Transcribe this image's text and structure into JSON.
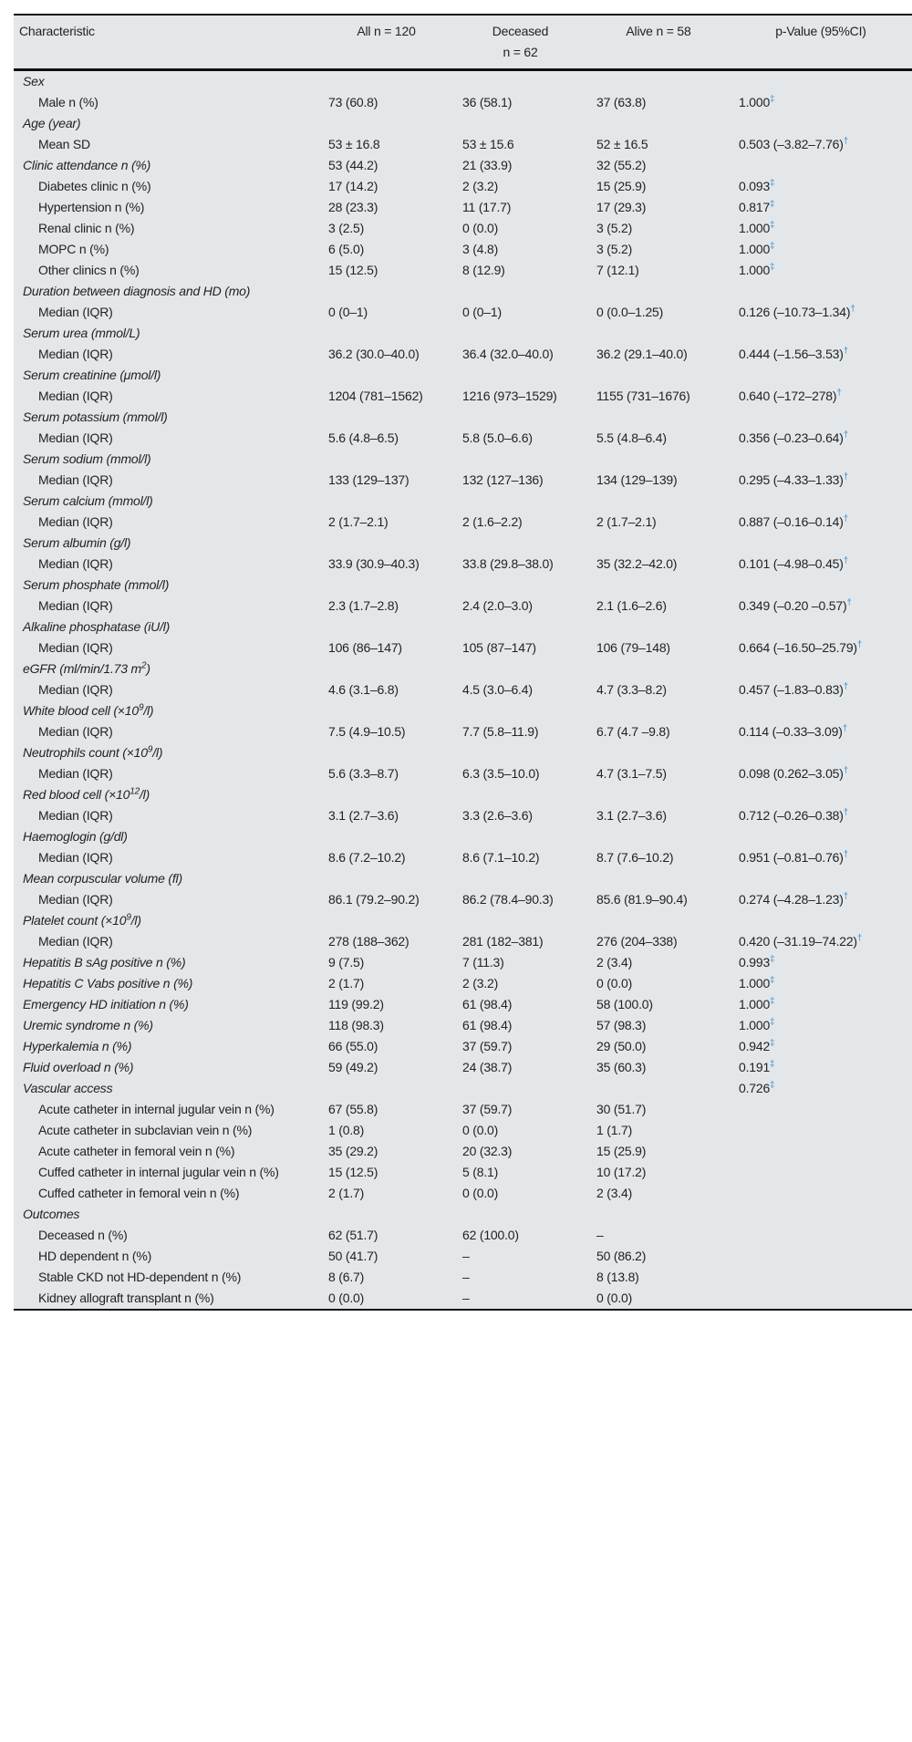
{
  "header": {
    "characteristic": "Characteristic",
    "all": "All n = 120",
    "deceased_line1": "Deceased",
    "deceased_line2": "n = 62",
    "alive": "Alive n = 58",
    "pvalue": "p-Value (95%CI)"
  },
  "colors": {
    "background": "#e3e7ea",
    "footnote_mark": "#3a8fd0"
  },
  "rows": [
    {
      "type": "sec",
      "label": "Sex"
    },
    {
      "type": "sub",
      "label": "Male n (%)",
      "all": "73 (60.8)",
      "dec": "36 (58.1)",
      "alive": "37 (63.8)",
      "p": "1.000",
      "mark": "‡"
    },
    {
      "type": "sec",
      "label": "Age (year)"
    },
    {
      "type": "sub",
      "label": "Mean SD",
      "all": "53 ± 16.8",
      "dec": "53 ± 15.6",
      "alive": "52 ± 16.5",
      "p": "0.503 (–3.82–7.76)",
      "mark": "†"
    },
    {
      "type": "sec",
      "label": "Clinic attendance n (%)",
      "all": "53 (44.2)",
      "dec": "21 (33.9)",
      "alive": "32 (55.2)"
    },
    {
      "type": "sub",
      "label": "Diabetes clinic n (%)",
      "all": "17 (14.2)",
      "dec": "2 (3.2)",
      "alive": "15 (25.9)",
      "p": "0.093",
      "mark": "‡"
    },
    {
      "type": "sub",
      "label": "Hypertension n (%)",
      "all": "28 (23.3)",
      "dec": "11 (17.7)",
      "alive": "17 (29.3)",
      "p": "0.817",
      "mark": "‡"
    },
    {
      "type": "sub",
      "label": "Renal clinic n (%)",
      "all": "3 (2.5)",
      "dec": "0 (0.0)",
      "alive": "3 (5.2)",
      "p": "1.000",
      "mark": "‡"
    },
    {
      "type": "sub",
      "label": "MOPC n (%)",
      "all": "6 (5.0)",
      "dec": "3 (4.8)",
      "alive": "3 (5.2)",
      "p": "1.000",
      "mark": "‡"
    },
    {
      "type": "sub",
      "label": "Other clinics n (%)",
      "all": "15 (12.5)",
      "dec": "8 (12.9)",
      "alive": "7 (12.1)",
      "p": "1.000",
      "mark": "‡"
    },
    {
      "type": "sec",
      "label": "Duration between diagnosis and HD (mo)"
    },
    {
      "type": "sub",
      "label": "Median (IQR)",
      "all": "0 (0–1)",
      "dec": "0 (0–1)",
      "alive": "0 (0.0–1.25)",
      "p": "0.126 (–10.73–1.34)",
      "mark": "†"
    },
    {
      "type": "sec",
      "label": "Serum urea (mmol/L)"
    },
    {
      "type": "sub",
      "label": "Median (IQR)",
      "all": "36.2 (30.0–40.0)",
      "dec": "36.4 (32.0–40.0)",
      "alive": "36.2 (29.1–40.0)",
      "p": "0.444 (–1.56–3.53)",
      "mark": "†"
    },
    {
      "type": "sec",
      "label": "Serum creatinine (μmol/l)"
    },
    {
      "type": "sub",
      "label": "Median (IQR)",
      "all": "1204 (781–1562)",
      "dec": "1216 (973–1529)",
      "alive": "1155 (731–1676)",
      "p": "0.640 (–172–278)",
      "mark": "†"
    },
    {
      "type": "sec",
      "label": "Serum potassium (mmol/l)"
    },
    {
      "type": "sub",
      "label": "Median (IQR)",
      "all": "5.6 (4.8–6.5)",
      "dec": "5.8 (5.0–6.6)",
      "alive": "5.5 (4.8–6.4)",
      "p": "0.356 (–0.23–0.64)",
      "mark": "†"
    },
    {
      "type": "sec",
      "label": "Serum sodium (mmol/l)"
    },
    {
      "type": "sub",
      "label": "Median (IQR)",
      "all": "133 (129–137)",
      "dec": "132 (127–136)",
      "alive": "134 (129–139)",
      "p": "0.295 (–4.33–1.33)",
      "mark": "†"
    },
    {
      "type": "sec",
      "label": "Serum calcium (mmol/l)"
    },
    {
      "type": "sub",
      "label": "Median (IQR)",
      "all": "2 (1.7–2.1)",
      "dec": "2 (1.6–2.2)",
      "alive": "2 (1.7–2.1)",
      "p": "0.887 (–0.16–0.14)",
      "mark": "†"
    },
    {
      "type": "sec",
      "label": "Serum albumin (g/l)"
    },
    {
      "type": "sub",
      "label": "Median (IQR)",
      "all": "33.9 (30.9–40.3)",
      "dec": "33.8 (29.8–38.0)",
      "alive": "35 (32.2–42.0)",
      "p": "0.101 (–4.98–0.45)",
      "mark": "†"
    },
    {
      "type": "sec",
      "label": "Serum phosphate (mmol/l)"
    },
    {
      "type": "sub",
      "label": "Median (IQR)",
      "all": "2.3 (1.7–2.8)",
      "dec": "2.4 (2.0–3.0)",
      "alive": "2.1 (1.6–2.6)",
      "p": "0.349 (–0.20 –0.57)",
      "mark": "†"
    },
    {
      "type": "sec",
      "label": "Alkaline phosphatase (iU/l)"
    },
    {
      "type": "sub",
      "label": "Median (IQR)",
      "all": "106 (86–147)",
      "dec": "105 (87–147)",
      "alive": "106 (79–148)",
      "p": "0.664 (–16.50–25.79)",
      "mark": "†"
    },
    {
      "type": "sec",
      "label": "eGFR (ml/min/1.73 m",
      "sup": "2",
      "label_post": ")"
    },
    {
      "type": "sub",
      "label": "Median (IQR)",
      "all": "4.6 (3.1–6.8)",
      "dec": "4.5 (3.0–6.4)",
      "alive": "4.7 (3.3–8.2)",
      "p": "0.457 (–1.83–0.83)",
      "mark": "†"
    },
    {
      "type": "sec",
      "label": "White blood cell (×10",
      "sup": "9",
      "label_post": "/l)"
    },
    {
      "type": "sub",
      "label": "Median (IQR)",
      "all": "7.5 (4.9–10.5)",
      "dec": "7.7 (5.8–11.9)",
      "alive": "6.7 (4.7 –9.8)",
      "p": "0.114 (–0.33–3.09)",
      "mark": "†"
    },
    {
      "type": "sec",
      "label": "Neutrophils count (×10",
      "sup": "9",
      "label_post": "/l)"
    },
    {
      "type": "sub",
      "label": "Median (IQR)",
      "all": "5.6 (3.3–8.7)",
      "dec": "6.3 (3.5–10.0)",
      "alive": "4.7 (3.1–7.5)",
      "p": "0.098 (0.262–3.05)",
      "mark": "†"
    },
    {
      "type": "sec",
      "label": "Red blood cell (×10",
      "sup": "12",
      "label_post": "/l)"
    },
    {
      "type": "sub",
      "label": "Median (IQR)",
      "all": "3.1 (2.7–3.6)",
      "dec": "3.3 (2.6–3.6)",
      "alive": "3.1 (2.7–3.6)",
      "p": "0.712 (–0.26–0.38)",
      "mark": "†"
    },
    {
      "type": "sec",
      "label": "Haemoglogin (g/dl)"
    },
    {
      "type": "sub",
      "label": "Median (IQR)",
      "all": "8.6 (7.2–10.2)",
      "dec": "8.6 (7.1–10.2)",
      "alive": "8.7 (7.6–10.2)",
      "p": "0.951 (–0.81–0.76)",
      "mark": "†"
    },
    {
      "type": "sec",
      "label": "Mean corpuscular volume (fl)"
    },
    {
      "type": "sub",
      "label": "Median (IQR)",
      "all": "86.1 (79.2–90.2)",
      "dec": "86.2 (78.4–90.3)",
      "alive": "85.6 (81.9–90.4)",
      "p": "0.274 (–4.28–1.23)",
      "mark": "†"
    },
    {
      "type": "sec",
      "label": "Platelet count (×10",
      "sup": "9",
      "label_post": "/l)"
    },
    {
      "type": "sub",
      "label": "Median (IQR)",
      "all": "278 (188–362)",
      "dec": "281 (182–381)",
      "alive": "276 (204–338)",
      "p": "0.420 (–31.19–74.22)",
      "mark": "†"
    },
    {
      "type": "sec",
      "label": "Hepatitis B sAg positive n (%)",
      "all": "9 (7.5)",
      "dec": "7 (11.3)",
      "alive": "2 (3.4)",
      "p": "0.993",
      "mark": "‡"
    },
    {
      "type": "sec",
      "label": "Hepatitis C Vabs positive n (%)",
      "all": "2 (1.7)",
      "dec": "2 (3.2)",
      "alive": "0 (0.0)",
      "p": "1.000",
      "mark": "‡"
    },
    {
      "type": "sec",
      "label": "Emergency HD initiation n (%)",
      "all": "119 (99.2)",
      "dec": "61 (98.4)",
      "alive": "58 (100.0)",
      "p": "1.000",
      "mark": "‡"
    },
    {
      "type": "sec",
      "label": "Uremic syndrome n (%)",
      "all": "118 (98.3)",
      "dec": "61 (98.4)",
      "alive": "57 (98.3)",
      "p": "1.000",
      "mark": "‡"
    },
    {
      "type": "sec",
      "label": "Hyperkalemia n (%)",
      "all": "66 (55.0)",
      "dec": "37 (59.7)",
      "alive": "29 (50.0)",
      "p": "0.942",
      "mark": "‡"
    },
    {
      "type": "sec",
      "label": "Fluid overload n (%)",
      "all": "59 (49.2)",
      "dec": "24 (38.7)",
      "alive": "35 (60.3)",
      "p": "0.191",
      "mark": "‡"
    },
    {
      "type": "sec",
      "label": "Vascular access",
      "p": "0.726",
      "mark": "‡"
    },
    {
      "type": "sub",
      "label": "Acute catheter in internal jugular vein n (%)",
      "all": "67 (55.8)",
      "dec": "37 (59.7)",
      "alive": "30 (51.7)"
    },
    {
      "type": "sub",
      "label": "Acute catheter in subclavian vein n (%)",
      "all": "1 (0.8)",
      "dec": "0 (0.0)",
      "alive": "1 (1.7)"
    },
    {
      "type": "sub",
      "label": "Acute catheter in femoral vein n (%)",
      "all": "35 (29.2)",
      "dec": "20 (32.3)",
      "alive": "15 (25.9)"
    },
    {
      "type": "sub",
      "label": "Cuffed catheter in internal jugular vein n (%)",
      "all": "15 (12.5)",
      "dec": "5 (8.1)",
      "alive": "10 (17.2)"
    },
    {
      "type": "sub",
      "label": "Cuffed catheter in femoral vein n (%)",
      "all": "2 (1.7)",
      "dec": "0 (0.0)",
      "alive": "2 (3.4)"
    },
    {
      "type": "sec",
      "label": "Outcomes"
    },
    {
      "type": "sub",
      "label": "Deceased n (%)",
      "all": "62 (51.7)",
      "dec": "62 (100.0)",
      "alive": "–"
    },
    {
      "type": "sub",
      "label": "HD dependent n (%)",
      "all": "50 (41.7)",
      "dec": "–",
      "alive": "50 (86.2)"
    },
    {
      "type": "sub",
      "label": "Stable CKD not HD-dependent n (%)",
      "all": "8 (6.7)",
      "dec": "–",
      "alive": "8 (13.8)"
    },
    {
      "type": "sub",
      "label": "Kidney allograft transplant n (%)",
      "all": "0 (0.0)",
      "dec": "–",
      "alive": "0 (0.0)"
    }
  ]
}
